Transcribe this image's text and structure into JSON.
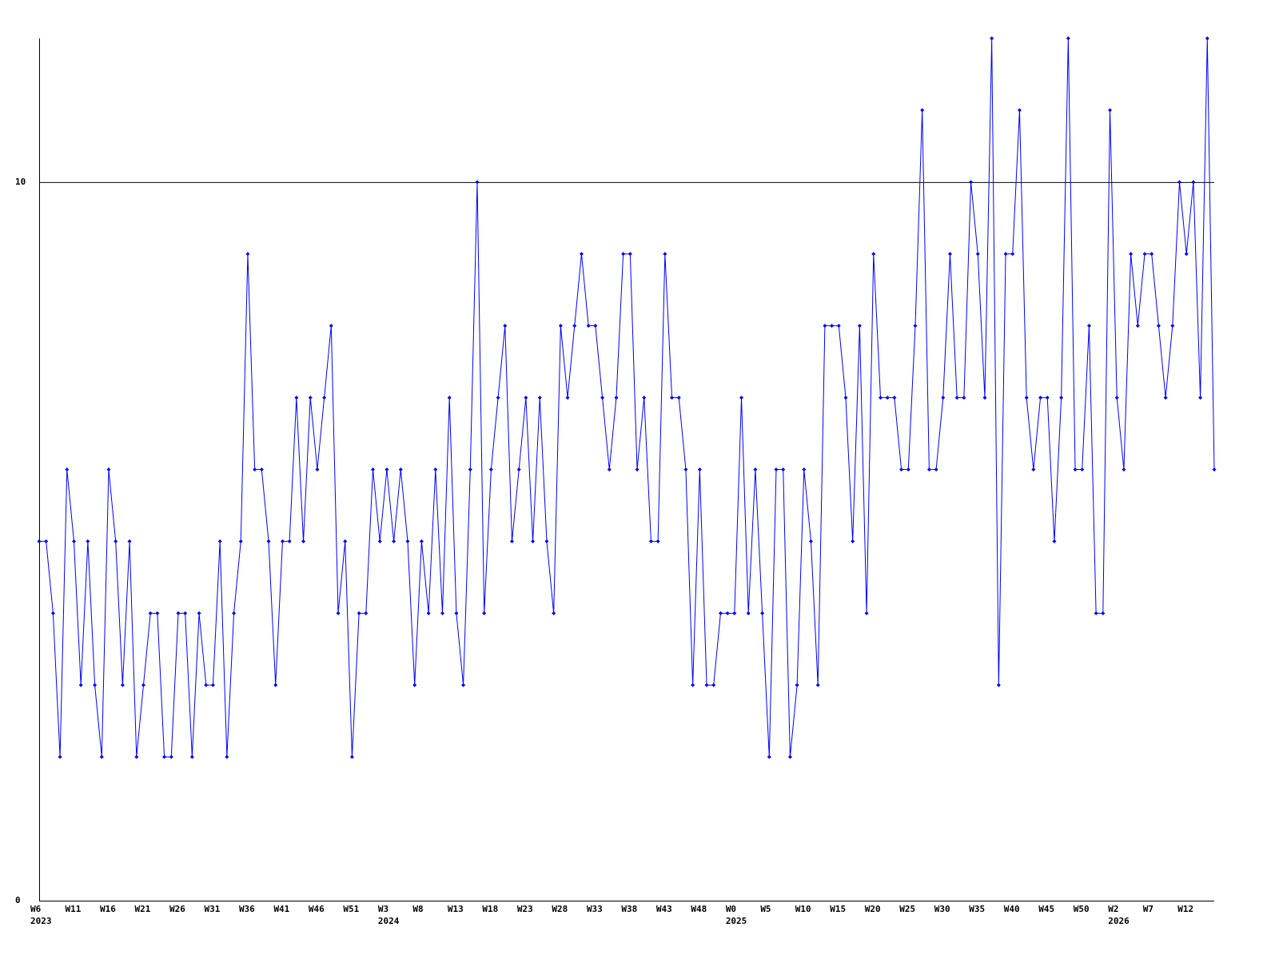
{
  "chart_data": {
    "type": "line",
    "categories": [
      "W6",
      null,
      null,
      null,
      null,
      "W11",
      null,
      null,
      null,
      null,
      "W16",
      null,
      null,
      null,
      null,
      "W21",
      null,
      null,
      null,
      null,
      "W26",
      null,
      null,
      null,
      null,
      "W31",
      null,
      null,
      null,
      null,
      "W36",
      null,
      null,
      null,
      null,
      "W41",
      null,
      null,
      null,
      null,
      "W46",
      null,
      null,
      null,
      null,
      "W51",
      null,
      null,
      null,
      null,
      "W3",
      null,
      null,
      null,
      null,
      "W8",
      null,
      null,
      null,
      null,
      "W13",
      null,
      null,
      null,
      null,
      "W18",
      null,
      null,
      null,
      null,
      "W23",
      null,
      null,
      null,
      null,
      "W28",
      null,
      null,
      null,
      null,
      "W33",
      null,
      null,
      null,
      null,
      "W38",
      null,
      null,
      null,
      null,
      "W43",
      null,
      null,
      null,
      null,
      "W48",
      null,
      null,
      null,
      null,
      "W0",
      null,
      null,
      null,
      null,
      "W5",
      null,
      null,
      null,
      null,
      "W10",
      null,
      null,
      null,
      null,
      "W15",
      null,
      null,
      null,
      null,
      "W20",
      null,
      null,
      null,
      null,
      "W25",
      null,
      null,
      null,
      null,
      "W30",
      null,
      null,
      null,
      null,
      "W35",
      null,
      null,
      null,
      null,
      "W40",
      null,
      null,
      null,
      null,
      "W45",
      null,
      null,
      null,
      null,
      "W50",
      null,
      null,
      null,
      null,
      "W2",
      null,
      null,
      null,
      null,
      "W7",
      null,
      null,
      null,
      null,
      "W12",
      null,
      null,
      null,
      null
    ],
    "year_labels": [
      {
        "category": 0,
        "label": "2023"
      },
      {
        "category": 50,
        "label": "2024"
      },
      {
        "category": 100,
        "label": "2025"
      },
      {
        "category": 155,
        "label": "2026"
      }
    ],
    "values": [
      5,
      5,
      4,
      2,
      6,
      5,
      3,
      5,
      3,
      2,
      6,
      5,
      3,
      5,
      2,
      3,
      4,
      4,
      2,
      2,
      4,
      4,
      2,
      4,
      3,
      3,
      5,
      2,
      4,
      5,
      9,
      6,
      6,
      5,
      3,
      5,
      5,
      7,
      5,
      7,
      6,
      7,
      8,
      4,
      5,
      2,
      4,
      4,
      6,
      5,
      6,
      5,
      6,
      5,
      3,
      5,
      4,
      6,
      4,
      7,
      4,
      3,
      6,
      10,
      4,
      6,
      7,
      8,
      5,
      6,
      7,
      5,
      7,
      5,
      4,
      8,
      7,
      8,
      9,
      8,
      8,
      7,
      6,
      7,
      9,
      9,
      6,
      7,
      5,
      5,
      9,
      7,
      7,
      6,
      3,
      6,
      3,
      3,
      4,
      4,
      4,
      7,
      4,
      6,
      4,
      2,
      6,
      6,
      2,
      3,
      6,
      5,
      3,
      8,
      8,
      8,
      7,
      5,
      8,
      4,
      9,
      7,
      7,
      7,
      6,
      6,
      8,
      11,
      6,
      6,
      7,
      9,
      7,
      7,
      10,
      9,
      7,
      12,
      3,
      9,
      9,
      11,
      7,
      6,
      7,
      7,
      5,
      7,
      12,
      6,
      6,
      8,
      4,
      4,
      11,
      7,
      6,
      9,
      8,
      9,
      9,
      8,
      7,
      8,
      10,
      9,
      10,
      7,
      12,
      6
    ],
    "color": "#0000ff",
    "ylim": [
      0,
      12
    ],
    "yticks": [
      0,
      10
    ],
    "grid": true
  }
}
